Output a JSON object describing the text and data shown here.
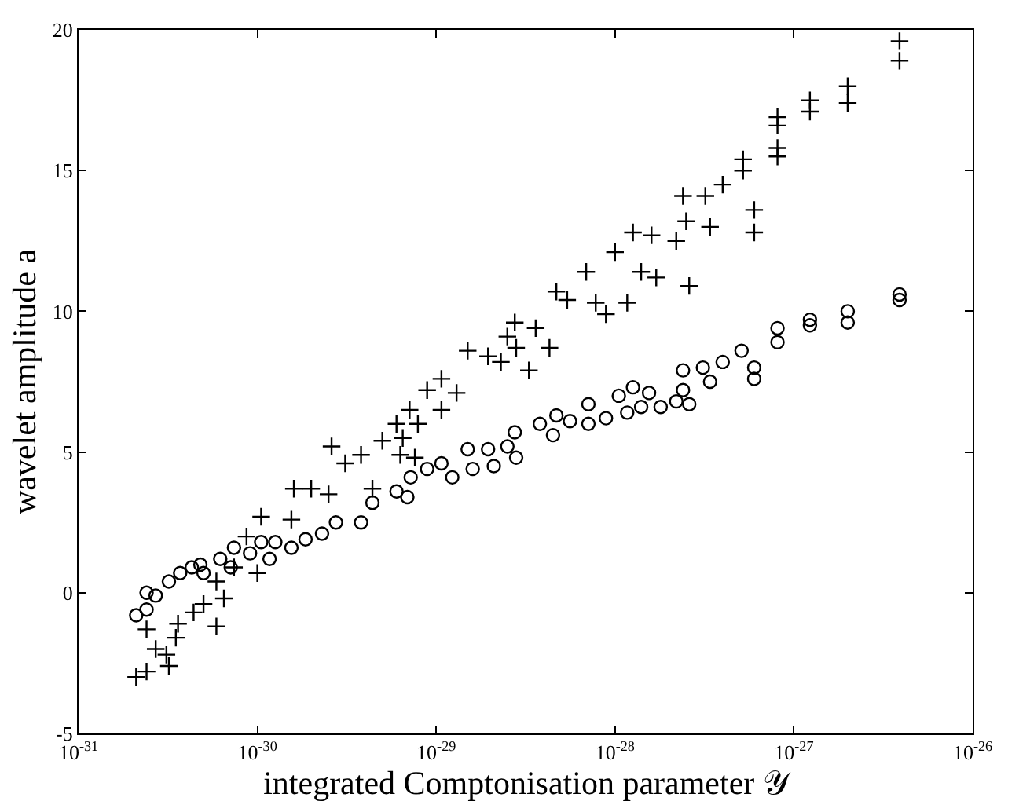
{
  "chart_data": {
    "type": "scatter",
    "xlabel": "integrated Comptonisation parameter 𝒴",
    "ylabel": "wavelet amplitude a",
    "log": "x",
    "xlim": [
      1e-31,
      1e-26
    ],
    "xticks": [
      {
        "value": 1e-31,
        "label": "10$^{-31}$"
      },
      {
        "value": 1e-30,
        "label": "10$^{-30}$"
      },
      {
        "value": 1e-29,
        "label": "10$^{-29}$"
      },
      {
        "value": 1e-28,
        "label": "10$^{-28}$"
      },
      {
        "value": 1e-27,
        "label": "10$^{-27}$"
      },
      {
        "value": 1e-26,
        "label": "10$^{-26}$"
      }
    ],
    "ylim": [
      -5,
      20
    ],
    "yticks": [
      -5,
      0,
      5,
      10,
      15,
      20
    ],
    "grid": false,
    "series": [
      {
        "color": "#000000",
        "marker": "cross",
        "x": [
          2.1e-31,
          2.4e-31,
          2.4e-31,
          2.7e-31,
          3.2e-31,
          3.1e-31,
          3.5e-31,
          3.6e-31,
          4.4e-31,
          5e-31,
          5.9e-31,
          5.9e-31,
          6.5e-31,
          7.4e-31,
          8.7e-31,
          1e-30,
          1.05e-30,
          1.55e-30,
          1.6e-30,
          2e-30,
          2.5e-30,
          2.6e-30,
          3.1e-30,
          3.8e-30,
          4.4e-30,
          5e-30,
          6.3e-30,
          6.5e-30,
          6e-30,
          7.1e-30,
          7.6e-30,
          7.9e-30,
          8.9e-30,
          1.07e-29,
          1.07e-29,
          1.3e-29,
          1.5e-29,
          1.95e-29,
          2.3e-29,
          2.5e-29,
          2.75e-29,
          2.8e-29,
          3.3e-29,
          3.6e-29,
          4.3e-29,
          4.7e-29,
          5.4e-29,
          6.9e-29,
          7.8e-29,
          8.9e-29,
          1e-28,
          1.17e-28,
          1.26e-28,
          1.4e-28,
          1.6e-28,
          1.7e-28,
          2.2e-28,
          2.4e-28,
          2.6e-28,
          2.5e-28,
          3.2e-28,
          3.4e-28,
          4e-28,
          5.2e-28,
          5.2e-28,
          6e-28,
          6e-28,
          8.1e-28,
          8.1e-28,
          8.1e-28,
          8.1e-28,
          1.23e-27,
          1.23e-27,
          2e-27,
          2e-27,
          3.9e-27,
          3.9e-27
        ],
        "values": [
          -3.0,
          -2.8,
          -1.3,
          -2.0,
          -2.6,
          -2.2,
          -1.6,
          -1.1,
          -0.7,
          -0.4,
          -1.2,
          0.4,
          -0.2,
          0.9,
          2.0,
          0.7,
          2.7,
          2.6,
          3.7,
          3.7,
          3.5,
          5.2,
          4.6,
          4.9,
          3.7,
          5.4,
          4.9,
          5.5,
          6.0,
          6.5,
          4.8,
          6.0,
          7.2,
          7.6,
          6.5,
          7.1,
          8.6,
          8.4,
          8.2,
          9.1,
          9.6,
          8.7,
          7.9,
          9.4,
          8.7,
          10.7,
          10.4,
          11.4,
          10.3,
          9.9,
          12.1,
          10.3,
          12.8,
          11.4,
          12.7,
          11.2,
          12.5,
          14.1,
          10.9,
          13.2,
          14.1,
          13.0,
          14.5,
          15.4,
          15.0,
          13.6,
          12.8,
          16.9,
          16.6,
          15.8,
          15.5,
          17.5,
          17.1,
          18.0,
          17.4,
          19.6,
          18.9
        ]
      },
      {
        "color": "#000000",
        "marker": "circle",
        "x": [
          2.1e-31,
          2.4e-31,
          2.4e-31,
          2.7e-31,
          3.2e-31,
          3.7e-31,
          4.3e-31,
          4.8e-31,
          5e-31,
          6.2e-31,
          7.1e-31,
          7.4e-31,
          9.1e-31,
          1.05e-30,
          1.17e-30,
          1.26e-30,
          1.55e-30,
          1.86e-30,
          2.3e-30,
          2.75e-30,
          3.8e-30,
          4.4e-30,
          6e-30,
          6.9e-30,
          7.2e-30,
          8.9e-30,
          1.07e-29,
          1.23e-29,
          1.5e-29,
          1.6e-29,
          1.95e-29,
          2.1e-29,
          2.5e-29,
          2.75e-29,
          2.8e-29,
          3.8e-29,
          4.5e-29,
          4.7e-29,
          5.6e-29,
          7.1e-29,
          7.1e-29,
          8.9e-29,
          1.05e-28,
          1.17e-28,
          1.26e-28,
          1.55e-28,
          1.4e-28,
          1.8e-28,
          2.2e-28,
          2.4e-28,
          2.4e-28,
          2.6e-28,
          3.1e-28,
          3.4e-28,
          4e-28,
          5.1e-28,
          6e-28,
          6e-28,
          8.1e-28,
          8.1e-28,
          1.23e-27,
          1.23e-27,
          2e-27,
          2e-27,
          3.9e-27,
          3.9e-27
        ],
        "values": [
          -0.8,
          0.0,
          -0.6,
          -0.1,
          0.4,
          0.7,
          0.9,
          1.0,
          0.7,
          1.2,
          0.9,
          1.6,
          1.4,
          1.8,
          1.2,
          1.8,
          1.6,
          1.9,
          2.1,
          2.5,
          2.5,
          3.2,
          3.6,
          3.4,
          4.1,
          4.4,
          4.6,
          4.1,
          5.1,
          4.4,
          5.1,
          4.5,
          5.2,
          5.7,
          4.8,
          6.0,
          5.6,
          6.3,
          6.1,
          6.7,
          6.0,
          6.2,
          7.0,
          6.4,
          7.3,
          7.1,
          6.6,
          6.6,
          6.8,
          7.9,
          7.2,
          6.7,
          8.0,
          7.5,
          8.2,
          8.6,
          8.0,
          7.6,
          9.4,
          8.9,
          9.7,
          9.5,
          10.0,
          9.6,
          10.6,
          10.4
        ]
      }
    ]
  }
}
